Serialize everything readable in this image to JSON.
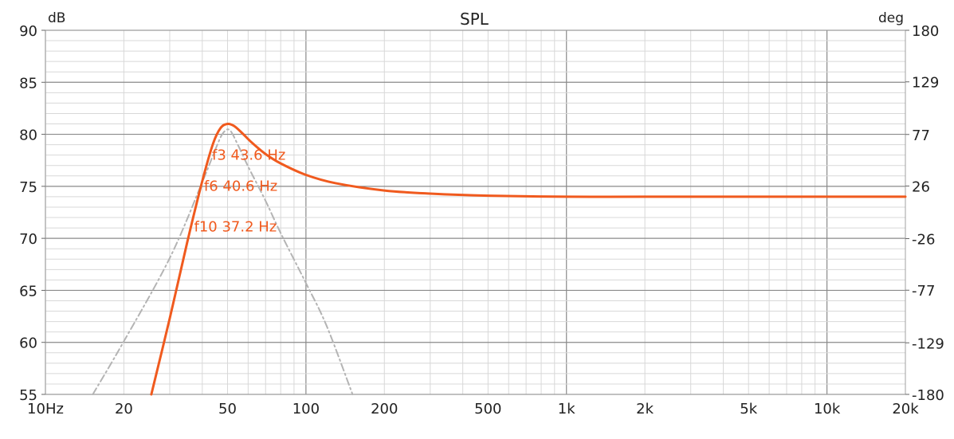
{
  "chart_data": {
    "type": "line",
    "title": "SPL",
    "y_unit_left": "dB",
    "y_unit_right": "deg",
    "x_scale": "log",
    "xlim": [
      10,
      20000
    ],
    "ylim": [
      55,
      90
    ],
    "y2lim": [
      -180,
      180
    ],
    "grid": true,
    "x_ticks": [
      {
        "value": 10,
        "label": "10Hz"
      },
      {
        "value": 20,
        "label": "20"
      },
      {
        "value": 50,
        "label": "50"
      },
      {
        "value": 100,
        "label": "100"
      },
      {
        "value": 200,
        "label": "200"
      },
      {
        "value": 500,
        "label": "500"
      },
      {
        "value": 1000,
        "label": "1k"
      },
      {
        "value": 2000,
        "label": "2k"
      },
      {
        "value": 5000,
        "label": "5k"
      },
      {
        "value": 10000,
        "label": "10k"
      },
      {
        "value": 20000,
        "label": "20k"
      }
    ],
    "y_ticks": [
      {
        "value": 90,
        "label": "90"
      },
      {
        "value": 85,
        "label": "85"
      },
      {
        "value": 80,
        "label": "80"
      },
      {
        "value": 75,
        "label": "75"
      },
      {
        "value": 70,
        "label": "70"
      },
      {
        "value": 65,
        "label": "65"
      },
      {
        "value": 60,
        "label": "60"
      },
      {
        "value": 55,
        "label": "55"
      }
    ],
    "y2_ticks": [
      {
        "value": 180,
        "label": "180"
      },
      {
        "value": 129,
        "label": "129"
      },
      {
        "value": 77,
        "label": "77"
      },
      {
        "value": 26,
        "label": "26"
      },
      {
        "value": -26,
        "label": "-26"
      },
      {
        "value": -77,
        "label": "-77"
      },
      {
        "value": -129,
        "label": "-129"
      },
      {
        "value": -180,
        "label": "-180"
      }
    ],
    "series": [
      {
        "color": "#f05a1e",
        "style": "solid",
        "x": [
          25.5,
          30,
          35,
          40,
          44,
          47,
          50,
          53,
          57,
          62,
          70,
          80,
          100,
          130,
          200,
          300,
          500,
          1000,
          2000,
          5000,
          10000,
          20000
        ],
        "y": [
          55,
          62.3,
          69.6,
          75.5,
          79.1,
          80.6,
          81,
          80.8,
          80.1,
          79.2,
          78.1,
          77.2,
          76.1,
          75.3,
          74.6,
          74.3,
          74.1,
          74,
          74,
          74,
          74,
          74
        ]
      },
      {
        "color": "#b4b4b4",
        "style": "dashdot",
        "x": [
          15.2,
          20,
          30,
          40,
          45,
          48,
          51,
          55,
          60,
          70,
          80,
          100,
          120,
          151
        ],
        "y": [
          55,
          60.1,
          68.1,
          75.4,
          78.6,
          80.1,
          80.4,
          78.9,
          76.9,
          73.6,
          70.5,
          65.7,
          61.6,
          55
        ]
      }
    ],
    "annotations": [
      {
        "text": "f3 43.6 Hz",
        "x": 43.6,
        "y": 78.1
      },
      {
        "text": "f6 40.6 Hz",
        "x": 40.6,
        "y": 75.1
      },
      {
        "text": "f10 37.2 Hz",
        "x": 37.2,
        "y": 71.2
      }
    ]
  }
}
